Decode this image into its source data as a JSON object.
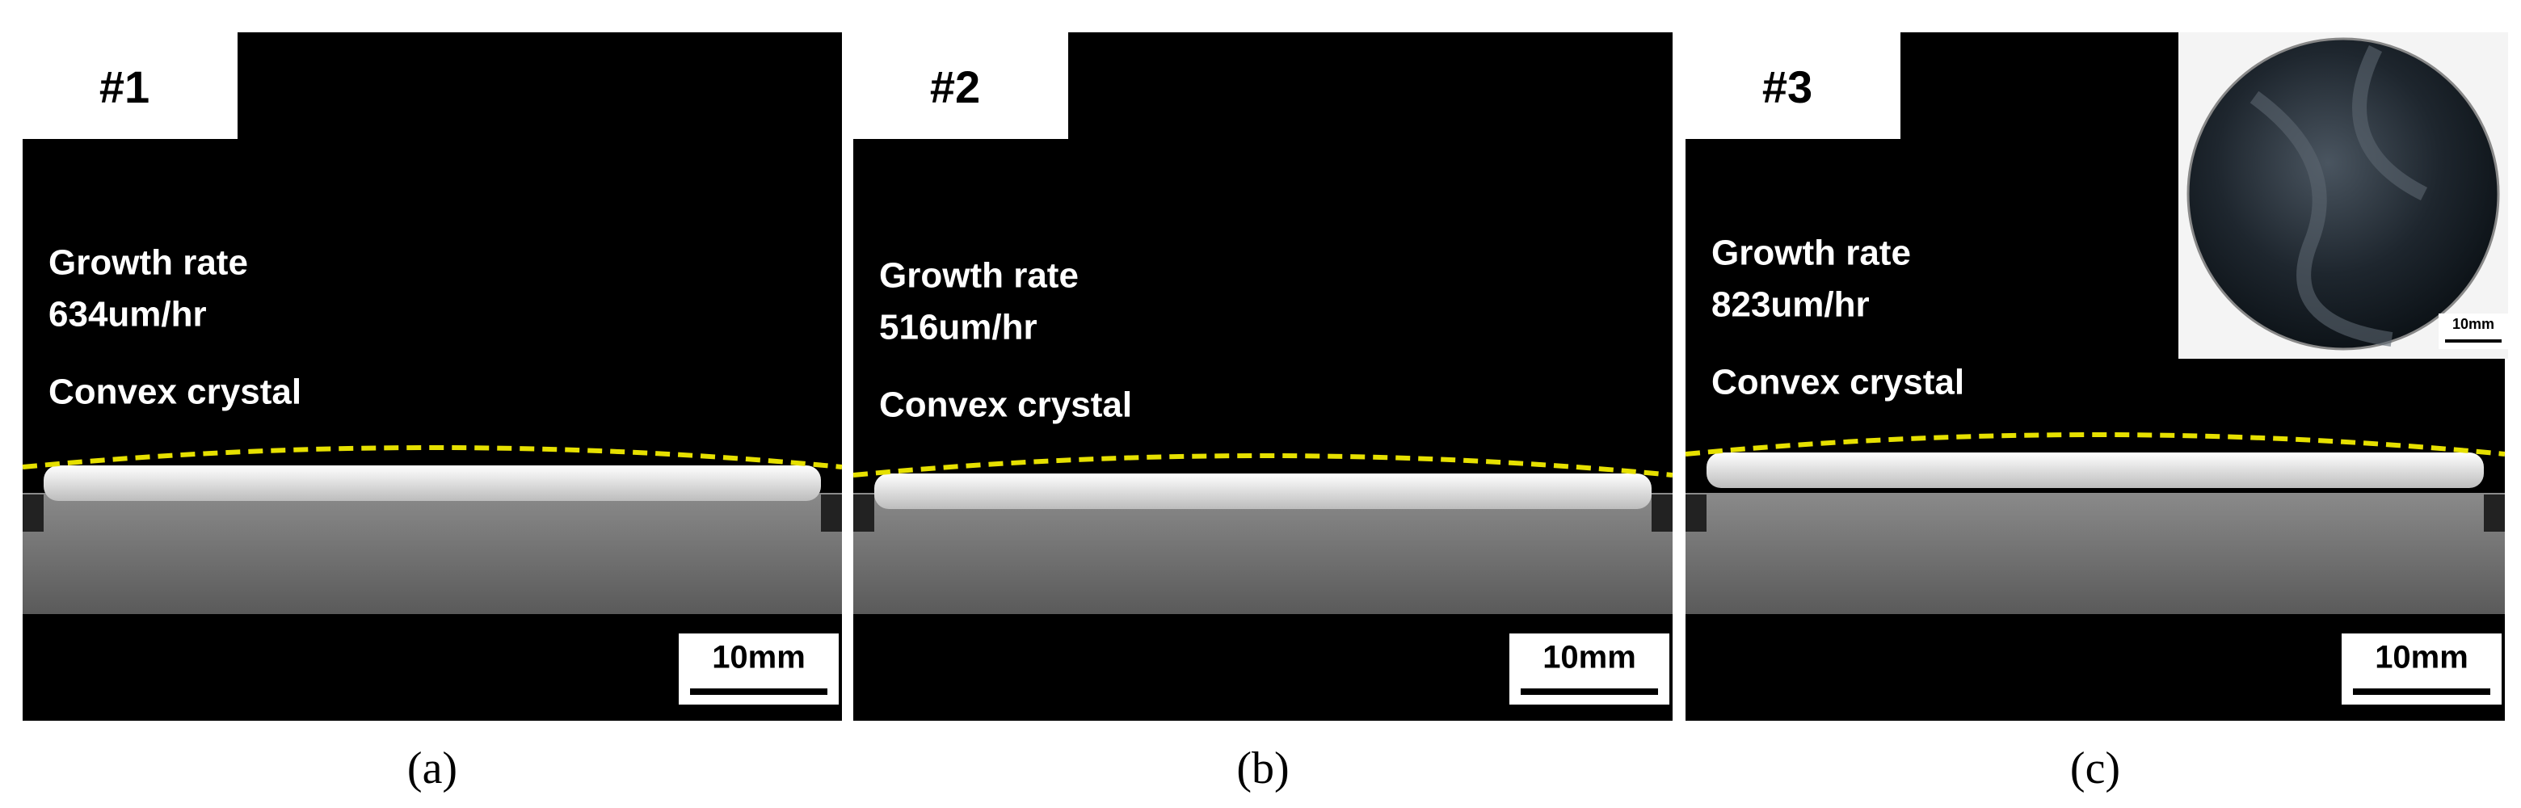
{
  "panels": [
    {
      "label": "#1",
      "growth_rate": "Growth rate",
      "rate": "634um/hr",
      "shape": "Convex crystal",
      "scale": "10mm",
      "caption": "(a)"
    },
    {
      "label": "#2",
      "growth_rate": "Growth rate",
      "rate": "516um/hr",
      "shape": "Convex crystal",
      "scale": "10mm",
      "caption": "(b)"
    },
    {
      "label": "#3",
      "growth_rate": "Growth rate",
      "rate": "823um/hr",
      "shape": "Convex crystal",
      "scale": "10mm",
      "caption": "(c)"
    }
  ],
  "inset": {
    "scale": "10mm"
  }
}
